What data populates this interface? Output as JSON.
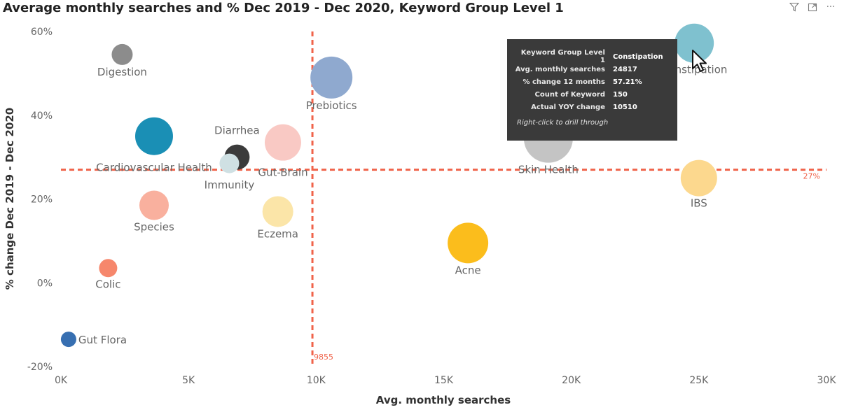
{
  "title": "Average monthly searches and % Dec 2019 - Dec 2020, Keyword Group Level 1",
  "toolbar": {
    "icons": [
      "filter-icon",
      "focus-mode-icon",
      "more-options-icon"
    ],
    "more_label": "···"
  },
  "chart_data": {
    "type": "scatter",
    "variant": "bubble",
    "title": "Average monthly searches and % Dec 2019 - Dec 2020, Keyword Group Level 1",
    "xlabel": "Avg. monthly searches",
    "ylabel": "% change Dec 2019 - Dec 2020",
    "xlim": [
      0,
      30000
    ],
    "ylim": [
      -0.2,
      0.6
    ],
    "x_ticks": [
      "0K",
      "5K",
      "10K",
      "15K",
      "20K",
      "25K",
      "30K"
    ],
    "y_ticks": [
      "60%",
      "40%",
      "20%",
      "0%",
      "-20%"
    ],
    "grid": false,
    "reference_lines": [
      {
        "axis": "x",
        "value": 9855,
        "label": "9855",
        "color": "#f0634a"
      },
      {
        "axis": "y",
        "value": 0.27,
        "label": "27%",
        "color": "#f0634a"
      }
    ],
    "points": [
      {
        "name": "Digestion",
        "x": 2400,
        "y": 0.545,
        "size": 15,
        "color": "#8c8c8c"
      },
      {
        "name": "Prebiotics",
        "x": 10600,
        "y": 0.49,
        "size": 30,
        "color": "#8fa9cf"
      },
      {
        "name": "Constipation",
        "x": 24817,
        "y": 0.5721,
        "size": 28,
        "color": "#7fc1cf"
      },
      {
        "name": "Cardiovascular Health",
        "x": 3650,
        "y": 0.35,
        "size": 27,
        "color": "#1a8fb5"
      },
      {
        "name": "Diarrhea",
        "x": 6900,
        "y": 0.3,
        "size": 18,
        "color": "#3b3b3b"
      },
      {
        "name": "Immunity",
        "x": 6600,
        "y": 0.285,
        "size": 14,
        "color": "#cfe0e3"
      },
      {
        "name": "Gut-Brain",
        "x": 8700,
        "y": 0.335,
        "size": 26,
        "color": "#f9c9c4"
      },
      {
        "name": "Skin Health",
        "x": 19100,
        "y": 0.345,
        "size": 35,
        "color": "#c4c4c4"
      },
      {
        "name": "IBS",
        "x": 25000,
        "y": 0.25,
        "size": 26,
        "color": "#fcd88e"
      },
      {
        "name": "Species",
        "x": 3650,
        "y": 0.185,
        "size": 21,
        "color": "#f9b09e"
      },
      {
        "name": "Eczema",
        "x": 8500,
        "y": 0.17,
        "size": 22,
        "color": "#fbe5a8"
      },
      {
        "name": "Acne",
        "x": 15950,
        "y": 0.095,
        "size": 29,
        "color": "#fbbd1c"
      },
      {
        "name": "Colic",
        "x": 1850,
        "y": 0.035,
        "size": 13,
        "color": "#f6876c"
      },
      {
        "name": "Gut Flora",
        "x": 300,
        "y": -0.135,
        "size": 11,
        "color": "#376fb1"
      }
    ]
  },
  "tooltip": {
    "rows": [
      {
        "label": "Keyword Group Level 1",
        "value": "Constipation"
      },
      {
        "label": "Avg. monthly searches",
        "value": "24817"
      },
      {
        "label": "% change 12 months",
        "value": "57.21%"
      },
      {
        "label": "Count of Keyword",
        "value": "150"
      },
      {
        "label": "Actual YOY change",
        "value": "10510"
      }
    ],
    "note": "Right-click to drill through"
  }
}
